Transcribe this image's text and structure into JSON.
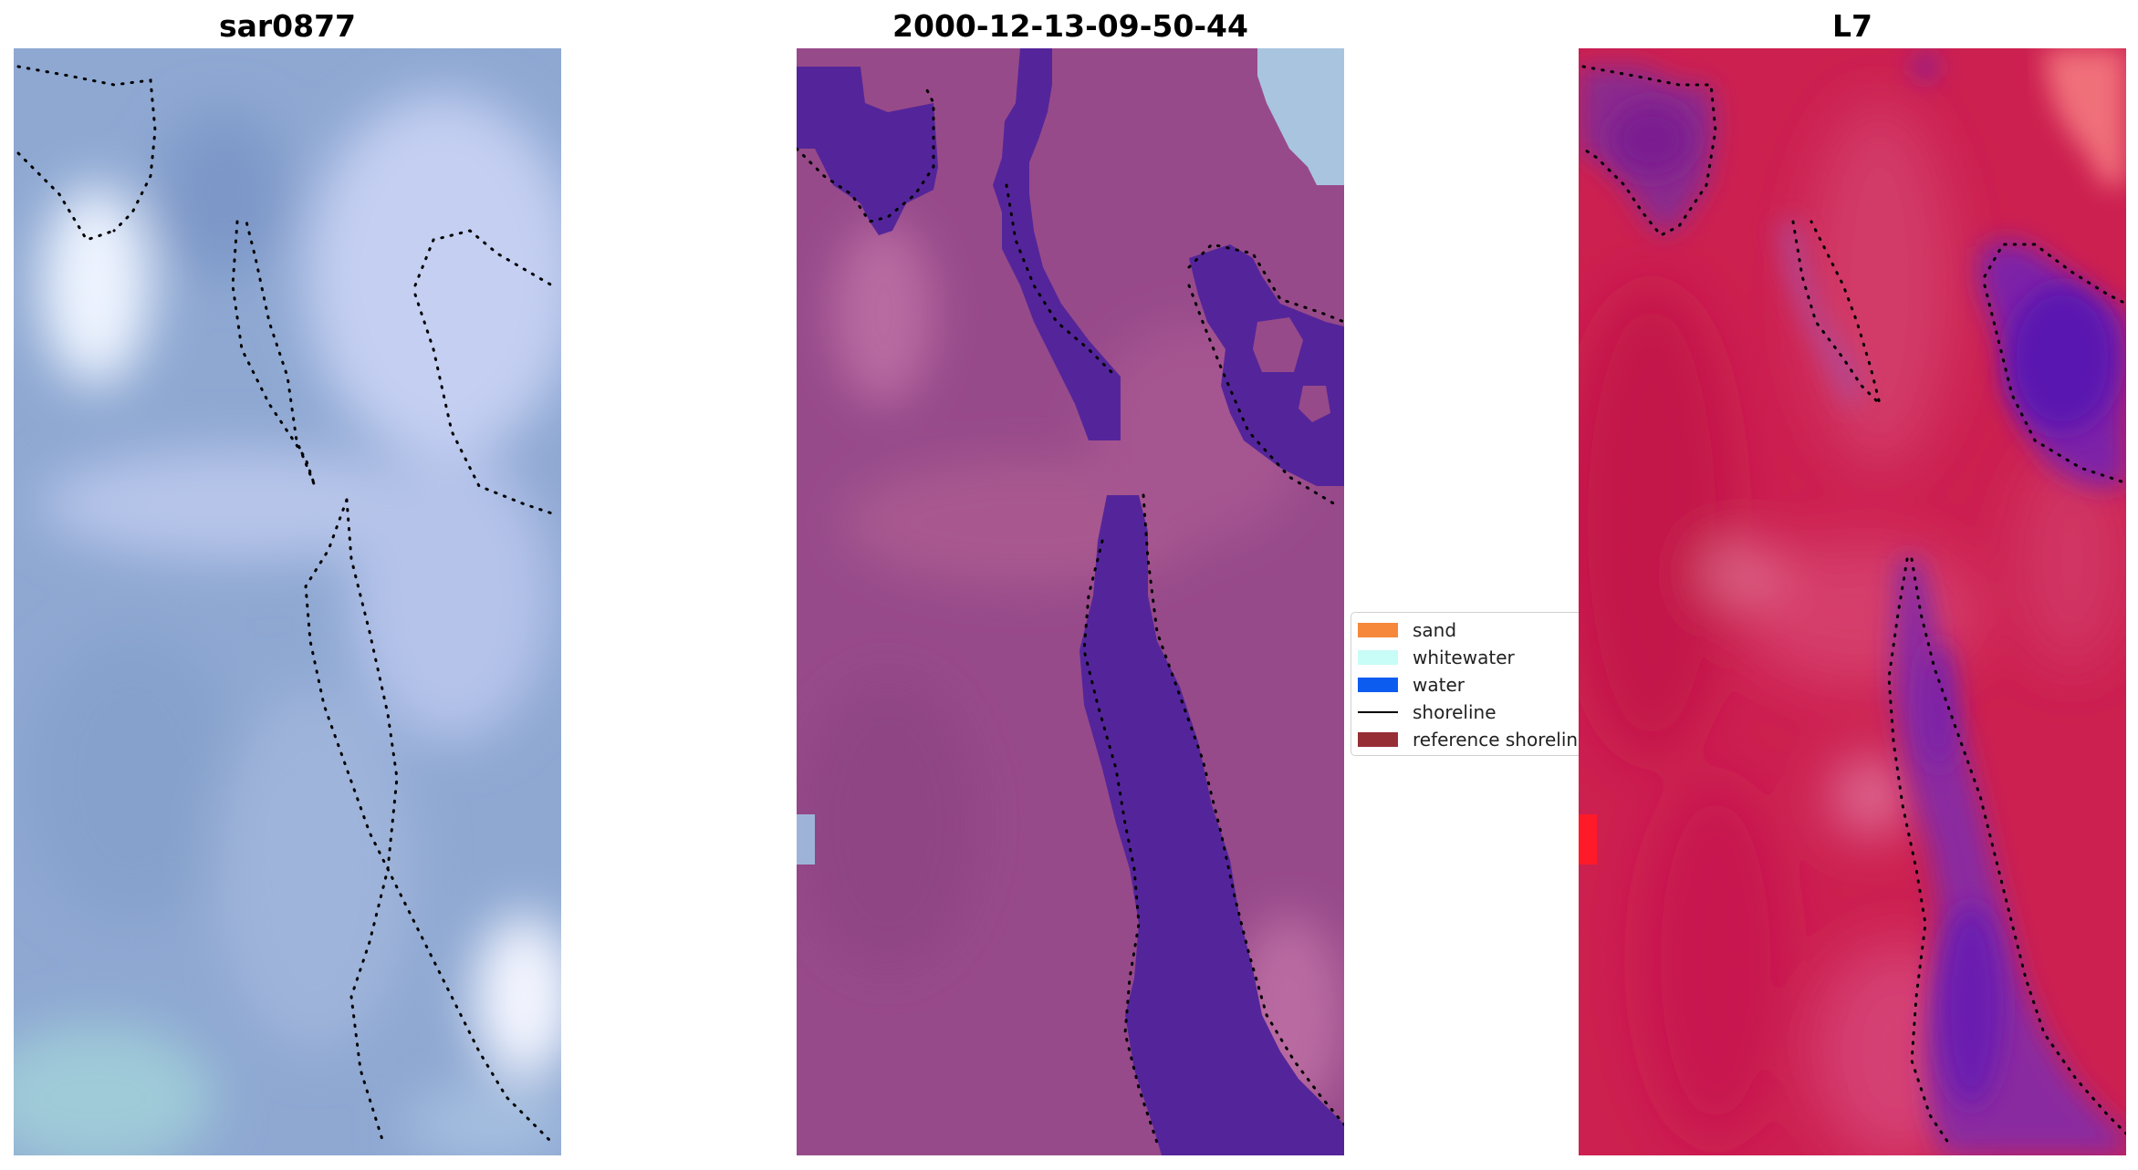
{
  "panels": [
    {
      "title": "sar0877"
    },
    {
      "title": "2000-12-13-09-50-44"
    },
    {
      "title": "L7"
    }
  ],
  "legend": {
    "items": [
      {
        "label": "sand",
        "color": "#f5883b",
        "kind": "patch"
      },
      {
        "label": "whitewater",
        "color": "#c8fcf6",
        "kind": "patch"
      },
      {
        "label": "water",
        "color": "#0d5cf0",
        "kind": "patch"
      },
      {
        "label": "shoreline",
        "color": "#000000",
        "kind": "line"
      },
      {
        "label": "reference shoreline",
        "color": "#962e35",
        "kind": "patch"
      }
    ]
  },
  "colors": {
    "rgb_background": "#8ea8d2",
    "classified_background": "#974a8a",
    "classified_water": "#54259a",
    "index_background": "#cc2050",
    "index_water": "#6a20a8"
  }
}
